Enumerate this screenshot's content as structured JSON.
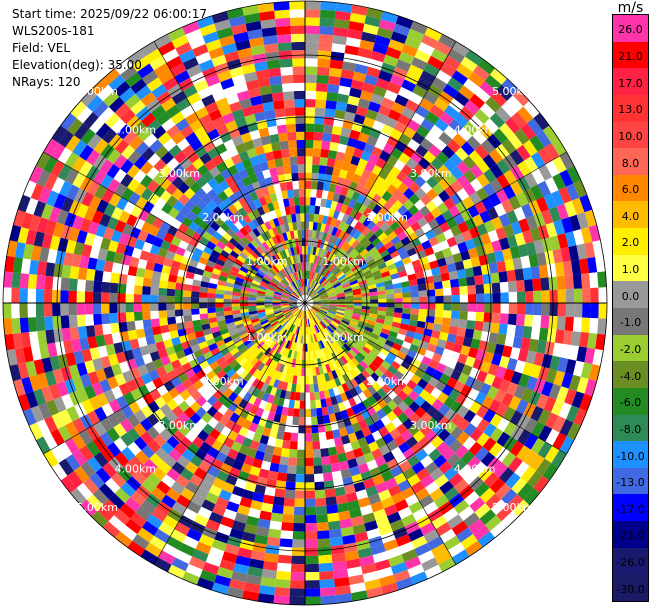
{
  "info": {
    "start_time": "Start time: 2025/09/22 06:00:17",
    "instrument": "WLS200s-181",
    "field": "Field: VEL",
    "elevation": "Elevation(deg): 35.00",
    "nrays": "NRays: 120"
  },
  "colorbar": {
    "unit": "m/s",
    "segments": [
      {
        "label": "26.0",
        "color": "#ff33aa"
      },
      {
        "label": "21.0",
        "color": "#ff0000"
      },
      {
        "label": "17.0",
        "color": "#ff2244"
      },
      {
        "label": "13.0",
        "color": "#ff3333"
      },
      {
        "label": "10.0",
        "color": "#ff4444"
      },
      {
        "label": "8.0",
        "color": "#ff6655"
      },
      {
        "label": "6.0",
        "color": "#ff8800"
      },
      {
        "label": "4.0",
        "color": "#ffbb00"
      },
      {
        "label": "2.0",
        "color": "#ffee00"
      },
      {
        "label": "1.0",
        "color": "#ffff44"
      },
      {
        "label": "0.0",
        "color": "#999999"
      },
      {
        "label": "-1.0",
        "color": "#777777"
      },
      {
        "label": "-2.0",
        "color": "#9acd32"
      },
      {
        "label": "-4.0",
        "color": "#6b8e23"
      },
      {
        "label": "-6.0",
        "color": "#228b22"
      },
      {
        "label": "-8.0",
        "color": "#2e8b57"
      },
      {
        "label": "-10.0",
        "color": "#1e90ff"
      },
      {
        "label": "-13.0",
        "color": "#4169e1"
      },
      {
        "label": "-17.0",
        "color": "#0000ff"
      },
      {
        "label": "-21.0",
        "color": "#00008b"
      },
      {
        "label": "-26.0",
        "color": "#191970"
      },
      {
        "label": "-30.0",
        "color": "#1a1a66"
      }
    ]
  },
  "range_labels": [
    "1.00km",
    "2.00km",
    "3.00km",
    "4.00km",
    "5.00km"
  ],
  "palette": [
    "#ff33aa",
    "#ff0000",
    "#ff2244",
    "#ff3333",
    "#ff4444",
    "#ff6655",
    "#ff8800",
    "#ffbb00",
    "#ffee00",
    "#ffff44",
    "#999999",
    "#777777",
    "#9acd32",
    "#6b8e23",
    "#228b22",
    "#2e8b57",
    "#1e90ff",
    "#4169e1",
    "#0000ff",
    "#00008b",
    "#191970"
  ]
}
